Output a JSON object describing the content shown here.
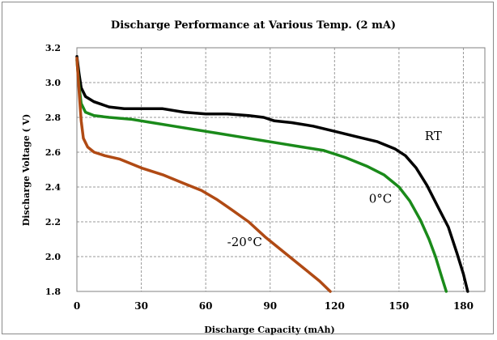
{
  "chart_data": {
    "type": "line",
    "title": "Discharge Performance at Various Temp. (2 mA)",
    "xlabel": "Discharge Capacity  (mAh)",
    "ylabel": "Discharge Voltage  ( V)",
    "xlim": [
      0,
      190
    ],
    "ylim": [
      1.8,
      3.2
    ],
    "x_ticks": [
      0,
      30,
      60,
      90,
      120,
      150,
      180
    ],
    "y_ticks": [
      1.8,
      2.0,
      2.2,
      2.4,
      2.6,
      2.8,
      3.0,
      3.2
    ],
    "y_tick_labels": [
      "1.8",
      "2.0",
      "2.2",
      "2.4",
      "2.6",
      "2.8",
      "3.0",
      "3.2"
    ],
    "grid": true,
    "series": [
      {
        "name": "RT",
        "color": "#000000",
        "points": [
          [
            0,
            3.15
          ],
          [
            1,
            3.05
          ],
          [
            2,
            2.97
          ],
          [
            4,
            2.92
          ],
          [
            8,
            2.89
          ],
          [
            15,
            2.86
          ],
          [
            22,
            2.85
          ],
          [
            30,
            2.85
          ],
          [
            40,
            2.85
          ],
          [
            50,
            2.83
          ],
          [
            60,
            2.82
          ],
          [
            70,
            2.82
          ],
          [
            80,
            2.81
          ],
          [
            87,
            2.8
          ],
          [
            92,
            2.78
          ],
          [
            100,
            2.77
          ],
          [
            110,
            2.75
          ],
          [
            120,
            2.72
          ],
          [
            130,
            2.69
          ],
          [
            140,
            2.66
          ],
          [
            148,
            2.62
          ],
          [
            153,
            2.58
          ],
          [
            158,
            2.51
          ],
          [
            163,
            2.41
          ],
          [
            168,
            2.29
          ],
          [
            173,
            2.17
          ],
          [
            177,
            2.02
          ],
          [
            180,
            1.9
          ],
          [
            182,
            1.8
          ]
        ]
      },
      {
        "name": "0°C",
        "color": "#1a8a1a",
        "points": [
          [
            0,
            3.13
          ],
          [
            1,
            2.98
          ],
          [
            2,
            2.88
          ],
          [
            4,
            2.83
          ],
          [
            8,
            2.81
          ],
          [
            15,
            2.8
          ],
          [
            25,
            2.79
          ],
          [
            35,
            2.77
          ],
          [
            45,
            2.75
          ],
          [
            55,
            2.73
          ],
          [
            65,
            2.71
          ],
          [
            75,
            2.69
          ],
          [
            85,
            2.67
          ],
          [
            95,
            2.65
          ],
          [
            105,
            2.63
          ],
          [
            115,
            2.61
          ],
          [
            125,
            2.57
          ],
          [
            135,
            2.52
          ],
          [
            143,
            2.47
          ],
          [
            150,
            2.4
          ],
          [
            155,
            2.32
          ],
          [
            160,
            2.21
          ],
          [
            164,
            2.1
          ],
          [
            167,
            2.0
          ],
          [
            170,
            1.88
          ],
          [
            172,
            1.8
          ]
        ]
      },
      {
        "name": "-20°C",
        "color": "#b04a14",
        "points": [
          [
            0,
            3.14
          ],
          [
            1,
            2.95
          ],
          [
            2,
            2.78
          ],
          [
            3,
            2.68
          ],
          [
            5,
            2.63
          ],
          [
            8,
            2.6
          ],
          [
            13,
            2.58
          ],
          [
            20,
            2.56
          ],
          [
            30,
            2.51
          ],
          [
            40,
            2.47
          ],
          [
            50,
            2.42
          ],
          [
            58,
            2.38
          ],
          [
            65,
            2.33
          ],
          [
            72,
            2.27
          ],
          [
            80,
            2.2
          ],
          [
            88,
            2.11
          ],
          [
            96,
            2.03
          ],
          [
            105,
            1.94
          ],
          [
            113,
            1.86
          ],
          [
            118,
            1.8
          ]
        ]
      }
    ],
    "annotations": [
      {
        "text": "RT",
        "x": 162,
        "y": 2.67,
        "series": "RT"
      },
      {
        "text": "0°C",
        "x": 136,
        "y": 2.31,
        "series": "0°C"
      },
      {
        "text": "-20°C",
        "x": 70,
        "y": 2.06,
        "series": "-20°C"
      }
    ]
  }
}
